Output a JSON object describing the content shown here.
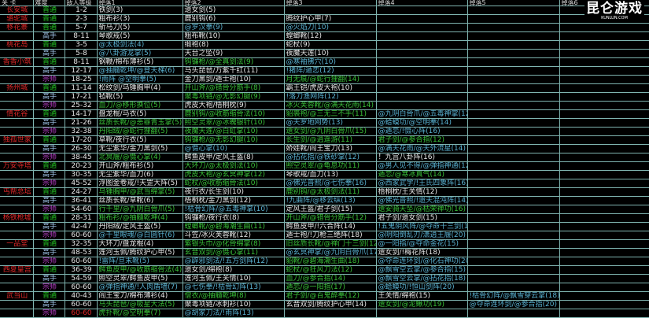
{
  "logo": {
    "text": "昆仑游戏",
    "sub": "KUNLUN.COM"
  },
  "headers": [
    "关 卡",
    "难度",
    "敌人等级",
    "掉落1",
    "掉落2",
    "掉落3",
    "掉落4",
    "掉落5",
    "掉落6"
  ],
  "colors": {
    "stage": "#e02828",
    "普通": "#22c022",
    "高手": "#9fc4e8",
    "宗师": "#c040d0",
    "skill": "#58b0d0",
    "grid": "#7fb4b0"
  },
  "rows": [
    [
      "长安城",
      "普通",
      "1-2",
      "铁剑(3)",
      "遗女剑(5)",
      "",
      "",
      "",
      ""
    ],
    [
      "骆驼城",
      "普通",
      "2-3",
      "粗布衫(3)",
      "鹿别钩(6)",
      "腾纹护心甲(7)",
      "",
      "",
      ""
    ],
    [
      "移花寨",
      "普通",
      "5-7",
      "斩马刀(5)",
      "@罗汉拳(9)",
      "@火焰刀(10)",
      "",
      "",
      ""
    ],
    [
      "",
      "高手",
      "8-11",
      "琴歌戒(5)",
      "粗布靴(10)",
      "螳螂靴(12)",
      "",
      "",
      ""
    ],
    [
      "桃花岛",
      "普通",
      "3-5",
      "@太极剑法(4)",
      "缎袍(8)",
      "蛇杖(9)",
      "",
      "",
      ""
    ],
    [
      "",
      "高手",
      "5-8",
      "@八卦游龙掌(5)",
      "天台之坠(9)",
      "夜魔天莲(10)",
      "",
      "",
      ""
    ],
    [
      "香香小筑",
      "普通",
      "8-11",
      "钢鞭/棉布薄衫(5)",
      "钩镰枪/@全真剑法(9)",
      "@寒袖拂穴(10)",
      "",
      "",
      ""
    ],
    [
      "",
      "高手",
      "12-17",
      "@抽髓乾坤/@登天梯(6)",
      "马头琵琶/万紫千红(11)",
      "!猪阵/遁恋(12)",
      "",
      "",
      ""
    ],
    [
      "",
      "宗师",
      "18-25",
      "!雨阵 @空明拳(5)",
      "金刀黑剑/遁士袍(10)",
      "月无痕/@蛇行狸翻(14)",
      "",
      "",
      ""
    ],
    [
      "扬州城",
      "普通",
      "11-14",
      "松纹剑/乌锤胸甲(4)",
      "开山斧/@错骨分筋手(8)",
      "霸王铠/虎皮大袍(10)",
      "",
      "",
      ""
    ],
    [
      "",
      "高手",
      "17-21",
      "毡靴(5)",
      "聚毒项链/@无影幻腿(9)",
      "!落刀渔网阵(12)",
      "",
      "",
      ""
    ],
    [
      "",
      "宗师",
      "25-32",
      "血刀/@移形换位(5)",
      "虎皮大袍/梧桐枕(9)",
      "冰火芙蓉靴/@满天花雨(14)",
      "",
      "",
      ""
    ],
    [
      "情花谷",
      "普通",
      "14-17",
      "盘龙棍/马衣(5)",
      "鹿别钩/@收筋缩骨法(10)",
      "貂裘袍/@三无三不手(11)",
      "@九阴白骨爪/@五毒神掌(12)",
      "",
      ""
    ],
    [
      "",
      "高手",
      "21-26",
      "丝质长靴/@恶罪青玉掌(5)",
      "照空灵翠/@冰魄银针(10)",
      "@天罗地网势(13)",
      "@蛤蟆功/@空明拳(14)",
      "",
      ""
    ],
    [
      "",
      "宗师",
      "32-38",
      "丹阳绒/@蛇行狸翻(5)",
      "夜魔天莲/@白虹掌(10)",
      "遗女剑/@九阴白骨爪(15)",
      "@遁恋/!慑心阵(16)",
      "",
      ""
    ],
    [
      "独孤世家",
      "普通",
      "17-20",
      "草靴/夜行衣(5)",
      "钩镰枪/@无影幻腿(10)",
      "长生剑/@逍遥游(11)",
      "君子剑/@参合指(12)",
      "",
      ""
    ],
    [
      "",
      "高手",
      "26-30",
      "无尘紫华/金刀黑剑(5)",
      "@慑心掌(10)",
      "娇娃靴/阎王宝刀(13)",
      "@满天花雨/@天外流星(14)",
      "",
      ""
    ],
    [
      "",
      "宗师",
      "38-45",
      "北冥履/@慑心掌(4)",
      "鳄鱼皮甲/定风王盔(8)",
      "@拈花指/@铁砂掌(12)",
      "！九宫八卦阵(16)",
      "",
      ""
    ],
    [
      "万安寺塔",
      "普通",
      "20-23",
      "开山斧/粗布衫(5)",
      "大环刀/@太极剑法(10)",
      "照空灵翠/@龟息功(11)",
      "@男人见不得/@弹指神通(12)",
      "",
      ""
    ],
    [
      "",
      "高手",
      "30-35",
      "无尘紫华/血刀(6)",
      "虎皮大袍/@玄冥神掌(12)",
      "琴歌戒/血刀(13)",
      "遁恋/@寒冰真气(14)",
      "",
      ""
    ],
    [
      "",
      "宗师",
      "45-52",
      "浮图金卷戒/!天罡大阵(5)",
      "蛇杖/@收筋缩骨法(10)",
      "@佛光普照/@七伤拳(16)",
      "@西家武学/!王氏四象阵(16)",
      "",
      ""
    ],
    [
      "丐帮总坛",
      "普通",
      "24-27",
      "乌锤胸甲/@武当绵掌(5)",
      "夜行衣/长生剑(10)",
      "鹿别钩/@太极剑法(11)",
      "梧桐枕/王关情(12)",
      "",
      ""
    ],
    [
      "",
      "高手",
      "36-41",
      "丝质长靴/草靴(6)",
      "梧桐枕/金刀黑剑(12)",
      "!九曲阵/@移云纵(13)",
      "@佛光普照/!遗天混沌阵(14)",
      "",
      ""
    ],
    [
      "",
      "宗师",
      "54-60",
      "行千里/@九阴白骨爪(5)",
      "!枯骨幻阵/@五毒神掌(10)",
      "定风王盔/君子剑(15)",
      "遗安骑天坠/@枯荣禅功(16)",
      "",
      ""
    ],
    [
      "杨铁枪墟",
      "普通",
      "28-31",
      "粗布衫/@抽髓乾坤(4)",
      "钩镰枪/夜行衣(8)",
      "开山斧/@错骨分筋手(12)",
      "君子剑/遗女剑(15)",
      "",
      ""
    ],
    [
      "",
      "高手",
      "42-47",
      "丹阳绒/定风王盔(5)",
      "螳螂靴/@碧海潮生曲(11)",
      "鳄鱼皮甲/!六合阵(14)",
      "!五鬼阴风阵/@夺命十三剑(18)",
      "",
      ""
    ],
    [
      "",
      "宗师",
      "60-60",
      "@千里眼魂/@白圆针(6)",
      "斗笠/冰火芙蓉靴(12)",
      "遁士袍/!刀枪三绝阵(18)",
      "@阴阳倒乱刃/潇逍王履(20)",
      "",
      ""
    ],
    [
      "一品堂",
      "普通",
      "32-35",
      "大环刀/盘龙棍(4)",
      "紫银头巾/@化骨绵掌(8)",
      "旧丝质长靴/@禅门十三剑(12)",
      "@一阳指/@夺命金花(15)",
      "",
      ""
    ],
    [
      "",
      "高手",
      "48-53",
      "莲河玉佩/腾纹护心甲(5)",
      "玄音双剑/@慑心掌(11)",
      "@玄冥神掌/@九阴白骨爪(17)",
      "遗女剑/!梅花阵(18)",
      "",
      ""
    ],
    [
      "",
      "宗师",
      "60-60",
      "!雷阵/旦末靴(5)",
      "@辟邪剑法/!五方剑阵(12)",
      "貂靴/@碧海潮生曲(18)",
      "@夺命连环剑/@化石神功(20)",
      "",
      ""
    ],
    [
      "西夏皇宫",
      "普通",
      "36-39",
      "鳄鱼皮甲/@收筋缩骨法(4)",
      "遗女剑/绵袍(8)",
      "蛇杖/@狂风刀法(12)",
      "@飘雪空云掌/@参合指(15)",
      "",
      ""
    ],
    [
      "",
      "高手",
      "54-59",
      "照空灵翠/鳄鱼皮甲(5)",
      "莲河玉佩/王关情(10)",
      "血刀/@参合指(14)",
      "@飘雪空云掌/@拈花指(18)",
      "",
      ""
    ],
    [
      "",
      "宗师",
      "60-60",
      "@弹指神通/!人肉盾墙(7)",
      "@七伤拳/!枯骨幻阵(13)",
      "遁恋/@一阳指(17)",
      "@蛤蟆功/!恒山剑阵(20)",
      "",
      ""
    ],
    [
      "武当山",
      "普通",
      "40-43",
      "阎王宝刀/棉布薄衫(4)",
      "僧衣/@抽髓乾坤(8)",
      "君子剑/@百鬼醉拳(12)",
      "王关情/绵袍(15)",
      "!枯骨幻阵/@飘雪穿云掌(18)",
      ""
    ],
    [
      "",
      "高手",
      "60-60",
      "马头琵琶/@吸星大法(5)",
      "聚毒项链/冰刺衫(10)",
      "玄音双剑/腾纹护心甲(14)",
      "遗女剑/@泥鳅功(19)",
      "@夺命连环剑/@参合指(20)",
      ""
    ],
    [
      "",
      "宗师",
      "60-60",
      "虎扑靴/@空明拳(7)",
      "@胡家刀法/!雨阵(13)",
      "",
      "",
      "",
      ""
    ]
  ]
}
